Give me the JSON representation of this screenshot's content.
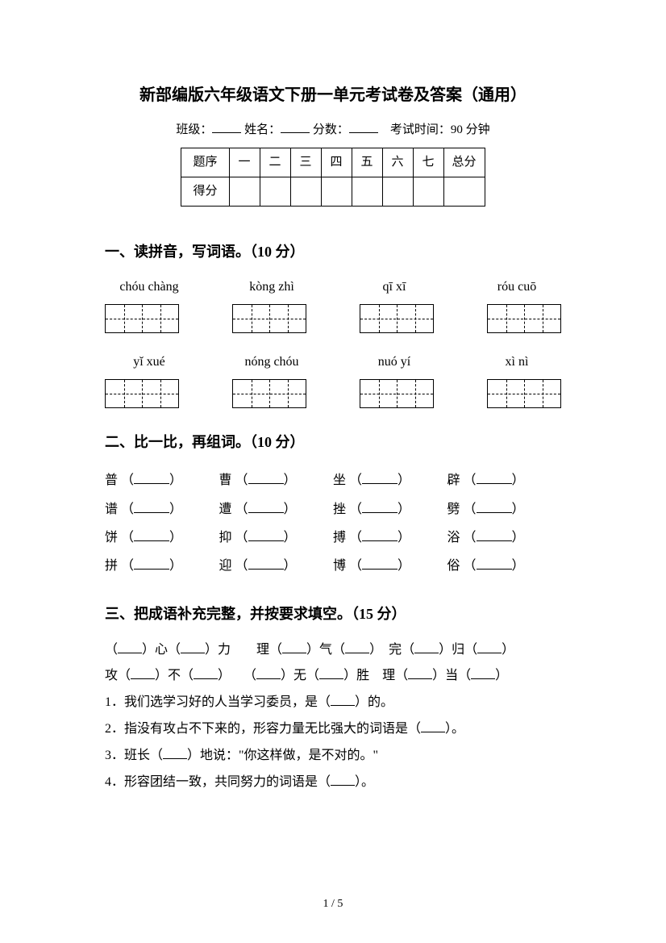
{
  "title": "新部编版六年级语文下册一单元考试卷及答案（通用）",
  "info": {
    "class_label": "班级：",
    "name_label": "姓名：",
    "score_label": "分数：",
    "time_label": "考试时间：90 分钟"
  },
  "score_table": {
    "row1": [
      "题序",
      "一",
      "二",
      "三",
      "四",
      "五",
      "六",
      "七",
      "总分"
    ],
    "row2_label": "得分"
  },
  "section1": {
    "heading": "一、读拼音，写词语。（10 分）",
    "pinyin_row1": [
      "chóu chàng",
      "kòng zhì",
      "qī   xī",
      "róu   cuō"
    ],
    "pinyin_row2": [
      "yǐ   xué",
      "nóng chóu",
      "nuó   yí",
      "xì   nì"
    ]
  },
  "section2": {
    "heading": "二、比一比，再组词。（10 分）",
    "rows": [
      [
        "普",
        "曹",
        "坐",
        "辟"
      ],
      [
        "谱",
        "遭",
        "挫",
        "劈"
      ],
      [
        "饼",
        "抑",
        "搏",
        "浴"
      ],
      [
        "拼",
        "迎",
        "博",
        "俗"
      ]
    ]
  },
  "section3": {
    "heading": "三、把成语补充完整，并按要求填空。（15 分）",
    "line1_parts": [
      "（",
      "）心（",
      "）力　　理（",
      "）气（",
      "）　完（",
      "）归（",
      "）"
    ],
    "line2_parts": [
      "攻（",
      "）不（",
      "）　　（",
      "）无（",
      "）胜　理（",
      "）当（",
      "）"
    ],
    "q1": "1．我们选学习好的人当学习委员，是（",
    "q1_end": "）的。",
    "q2": "2．指没有攻占不下来的，形容力量无比强大的词语是（",
    "q2_end": "）。",
    "q3": "3．班长（",
    "q3_end": "）地说：\"你这样做，是不对的。\"",
    "q4": "4．形容团结一致，共同努力的词语是（",
    "q4_end": "）。"
  },
  "footer": "1 / 5"
}
